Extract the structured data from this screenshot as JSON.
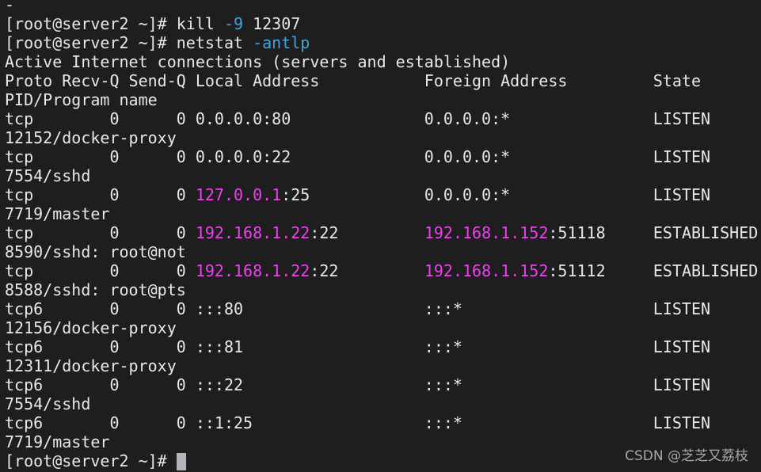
{
  "colors": {
    "default": "#e8e8e8",
    "cyan": "#3da7dc",
    "magenta": "#f040f0",
    "background": "#1e1e1e"
  },
  "terminal": {
    "lines": [
      {
        "segments": [
          {
            "text": "-"
          }
        ]
      },
      {
        "segments": [
          {
            "text": "[root@server2 ~]# kill "
          },
          {
            "text": "-9",
            "color": "cyan"
          },
          {
            "text": " 12307"
          }
        ]
      },
      {
        "segments": [
          {
            "text": "[root@server2 ~]# netstat "
          },
          {
            "text": "-antlp",
            "color": "cyan"
          }
        ]
      },
      {
        "segments": [
          {
            "text": "Active Internet connections (servers and established)"
          }
        ]
      },
      {
        "segments": [
          {
            "text": "Proto Recv-Q Send-Q Local Address           Foreign Address         State"
          }
        ]
      },
      {
        "segments": [
          {
            "text": "PID/Program name"
          }
        ]
      },
      {
        "segments": [
          {
            "text": "tcp        0      0 0.0.0.0:80              0.0.0.0:*               LISTEN"
          }
        ]
      },
      {
        "segments": [
          {
            "text": "12152/docker-proxy"
          }
        ]
      },
      {
        "segments": [
          {
            "text": "tcp        0      0 0.0.0.0:22              0.0.0.0:*               LISTEN"
          }
        ]
      },
      {
        "segments": [
          {
            "text": "7554/sshd"
          }
        ]
      },
      {
        "segments": [
          {
            "text": "tcp        0      0 "
          },
          {
            "text": "127.0.0.1",
            "color": "magenta"
          },
          {
            "text": ":25            0.0.0.0:*               LISTEN"
          }
        ]
      },
      {
        "segments": [
          {
            "text": "7719/master"
          }
        ]
      },
      {
        "segments": [
          {
            "text": "tcp        0      0 "
          },
          {
            "text": "192.168.1.22",
            "color": "magenta"
          },
          {
            "text": ":22         "
          },
          {
            "text": "192.168.1.152",
            "color": "magenta"
          },
          {
            "text": ":51118     ESTABLISHED"
          }
        ]
      },
      {
        "segments": [
          {
            "text": "8590/sshd: root@not"
          }
        ]
      },
      {
        "segments": [
          {
            "text": "tcp        0      0 "
          },
          {
            "text": "192.168.1.22",
            "color": "magenta"
          },
          {
            "text": ":22         "
          },
          {
            "text": "192.168.1.152",
            "color": "magenta"
          },
          {
            "text": ":51112     ESTABLISHED"
          }
        ]
      },
      {
        "segments": [
          {
            "text": "8588/sshd: root@pts"
          }
        ]
      },
      {
        "segments": [
          {
            "text": "tcp6       0      0 :::80                   :::*                    LISTEN"
          }
        ]
      },
      {
        "segments": [
          {
            "text": "12156/docker-proxy"
          }
        ]
      },
      {
        "segments": [
          {
            "text": "tcp6       0      0 :::81                   :::*                    LISTEN"
          }
        ]
      },
      {
        "segments": [
          {
            "text": "12311/docker-proxy"
          }
        ]
      },
      {
        "segments": [
          {
            "text": "tcp6       0      0 :::22                   :::*                    LISTEN"
          }
        ]
      },
      {
        "segments": [
          {
            "text": "7554/sshd"
          }
        ]
      },
      {
        "segments": [
          {
            "text": "tcp6       0      0 ::1:25                  :::*                    LISTEN"
          }
        ]
      },
      {
        "segments": [
          {
            "text": "7719/master"
          }
        ]
      },
      {
        "segments": [
          {
            "text": "[root@server2 ~]# "
          }
        ],
        "cursor": true
      }
    ]
  },
  "watermark": "CSDN @芝芝又荔枝"
}
